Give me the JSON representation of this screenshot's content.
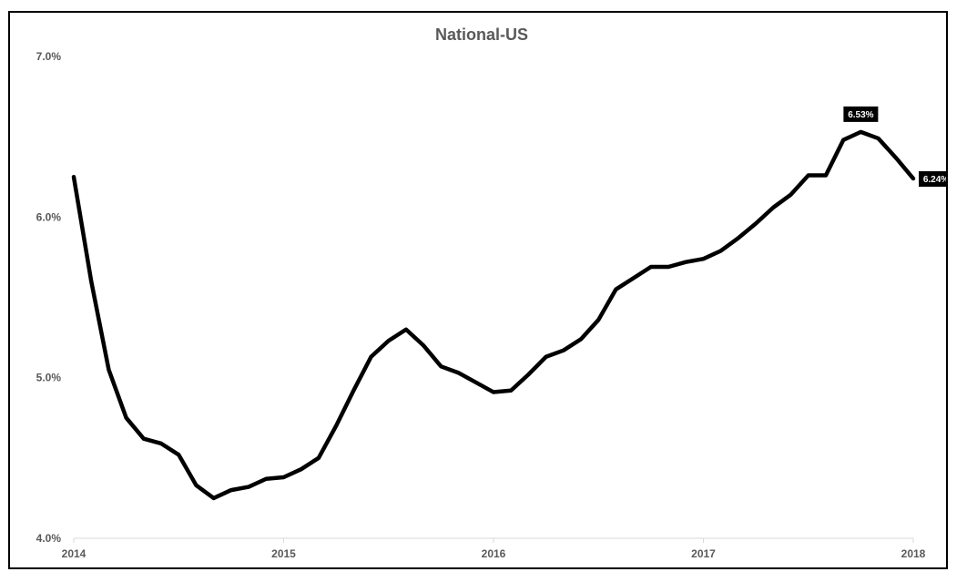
{
  "chart_data": {
    "type": "line",
    "title": "National-US",
    "xlabel": "",
    "ylabel": "",
    "x_ticks": [
      "2014",
      "2015",
      "2016",
      "2017",
      "2018"
    ],
    "x_range": [
      2014,
      2018
    ],
    "y_ticks": [
      "4.0%",
      "5.0%",
      "6.0%",
      "7.0%"
    ],
    "ylim": [
      4.0,
      7.0
    ],
    "grid": false,
    "line_color": "#000000",
    "series": [
      {
        "x": [
          "2014-01",
          "2014-02",
          "2014-03",
          "2014-04",
          "2014-05",
          "2014-06",
          "2014-07",
          "2014-08",
          "2014-09",
          "2014-10",
          "2014-11",
          "2014-12",
          "2015-01",
          "2015-02",
          "2015-03",
          "2015-04",
          "2015-05",
          "2015-06",
          "2015-07",
          "2015-08",
          "2015-09",
          "2015-10",
          "2015-11",
          "2015-12",
          "2016-01",
          "2016-02",
          "2016-03",
          "2016-04",
          "2016-05",
          "2016-06",
          "2016-07",
          "2016-08",
          "2016-09",
          "2016-10",
          "2016-11",
          "2016-12",
          "2017-01",
          "2017-02",
          "2017-03",
          "2017-04",
          "2017-05",
          "2017-06",
          "2017-07",
          "2017-08",
          "2017-09",
          "2017-10",
          "2017-11",
          "2017-12",
          "2018-01"
        ],
        "values": [
          6.25,
          5.6,
          5.05,
          4.75,
          4.62,
          4.59,
          4.52,
          4.33,
          4.25,
          4.3,
          4.32,
          4.37,
          4.38,
          4.43,
          4.5,
          4.7,
          4.92,
          5.13,
          5.23,
          5.3,
          5.2,
          5.07,
          5.03,
          4.97,
          4.91,
          4.92,
          5.02,
          5.13,
          5.17,
          5.24,
          5.36,
          5.55,
          5.62,
          5.69,
          5.69,
          5.72,
          5.74,
          5.79,
          5.87,
          5.96,
          6.06,
          6.14,
          6.26,
          6.26,
          6.48,
          6.53,
          6.49,
          6.37,
          6.24
        ]
      }
    ],
    "annotations": [
      {
        "label": "6.53%",
        "x": "2017-10",
        "y": 6.53
      },
      {
        "label": "6.24%",
        "x": "2018-01",
        "y": 6.24
      }
    ]
  }
}
